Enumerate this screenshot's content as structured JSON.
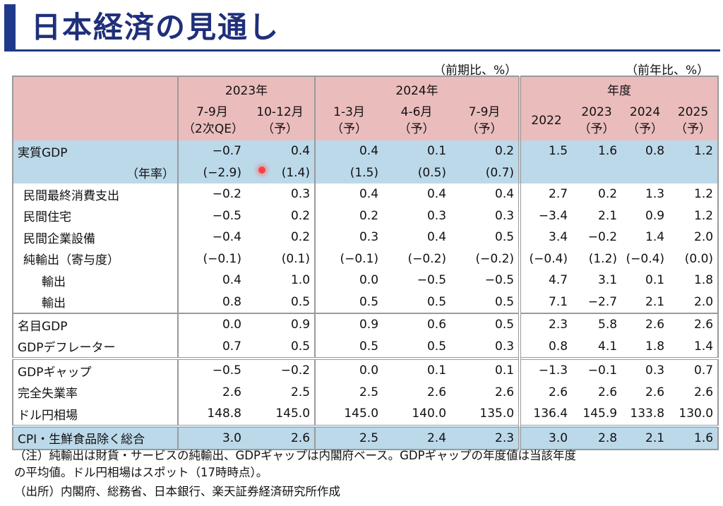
{
  "title": "日本経済の見通し",
  "unit_quarter": "（前期比、%）",
  "unit_year": "（前年比、%）",
  "header": {
    "group_2023": "2023年",
    "group_2024": "2024年",
    "group_fy": "年度",
    "cols": [
      [
        "7-9月",
        "（2次QE）"
      ],
      [
        "10-12月",
        "（予）"
      ],
      [
        "1-3月",
        "（予）"
      ],
      [
        "4-6月",
        "（予）"
      ],
      [
        "7-9月",
        "（予）"
      ],
      [
        "2022",
        ""
      ],
      [
        "2023",
        "（予）"
      ],
      [
        "2024",
        "（予）"
      ],
      [
        "2025",
        "（予）"
      ]
    ]
  },
  "rows": [
    {
      "label": "実質GDP",
      "values": [
        "−0.7",
        "0.4",
        "0.4",
        "0.1",
        "0.2",
        "1.5",
        "1.6",
        "0.8",
        "1.2"
      ]
    },
    {
      "label": "（年率）",
      "values": [
        "(−2.9)",
        "(1.4)",
        "(1.5)",
        "(0.5)",
        "(0.7)",
        "",
        "",
        "",
        ""
      ]
    },
    {
      "label": "民間最終消費支出",
      "values": [
        "−0.2",
        "0.3",
        "0.4",
        "0.4",
        "0.4",
        "2.7",
        "0.2",
        "1.3",
        "1.2"
      ]
    },
    {
      "label": "民間住宅",
      "values": [
        "−0.5",
        "0.2",
        "0.2",
        "0.3",
        "0.3",
        "−3.4",
        "2.1",
        "0.9",
        "1.2"
      ]
    },
    {
      "label": "民間企業設備",
      "values": [
        "−0.4",
        "0.2",
        "0.3",
        "0.4",
        "0.5",
        "3.4",
        "−0.2",
        "1.4",
        "2.0"
      ]
    },
    {
      "label": "純輸出（寄与度）",
      "values": [
        "(−0.1)",
        "(0.1)",
        "(−0.1)",
        "(−0.2)",
        "(−0.2)",
        "(−0.4)",
        "(1.2)",
        "(−0.4)",
        "(0.0)"
      ]
    },
    {
      "label": "輸出",
      "values": [
        "0.4",
        "1.0",
        "0.0",
        "−0.5",
        "−0.5",
        "4.7",
        "3.1",
        "0.1",
        "1.8"
      ]
    },
    {
      "label": "輸出",
      "values": [
        "0.8",
        "0.5",
        "0.5",
        "0.5",
        "0.5",
        "7.1",
        "−2.7",
        "2.1",
        "2.0"
      ]
    },
    {
      "label": "名目GDP",
      "values": [
        "0.0",
        "0.9",
        "0.9",
        "0.6",
        "0.5",
        "2.3",
        "5.8",
        "2.6",
        "2.6"
      ]
    },
    {
      "label": "GDPデフレーター",
      "values": [
        "0.7",
        "0.5",
        "0.5",
        "0.5",
        "0.3",
        "0.8",
        "4.1",
        "1.8",
        "1.4"
      ]
    },
    {
      "label": "GDPギャップ",
      "values": [
        "−0.5",
        "−0.2",
        "0.0",
        "0.1",
        "0.1",
        "−1.3",
        "−0.1",
        "0.3",
        "0.7"
      ]
    },
    {
      "label": "完全失業率",
      "values": [
        "2.6",
        "2.5",
        "2.5",
        "2.6",
        "2.6",
        "2.6",
        "2.6",
        "2.6",
        "2.6"
      ]
    },
    {
      "label": "ドル円相場",
      "values": [
        "148.8",
        "145.0",
        "145.0",
        "140.0",
        "135.0",
        "136.4",
        "145.9",
        "133.8",
        "130.0"
      ]
    },
    {
      "label": "CPI・生鮮食品除く総合",
      "values": [
        "3.0",
        "2.6",
        "2.5",
        "2.4",
        "2.3",
        "3.0",
        "2.8",
        "2.1",
        "1.6"
      ]
    }
  ],
  "notes": {
    "line1": "（注）純輸出は財貨・サービスの純輸出、GDPギャップは内閣府ベース。GDPギャップの年度値は当該年度",
    "line2": "の平均値。ドル円相場はスポット（17時時点）。",
    "source": "（出所）内閣府、総務省、日本銀行、楽天証券経済研究所作成"
  }
}
